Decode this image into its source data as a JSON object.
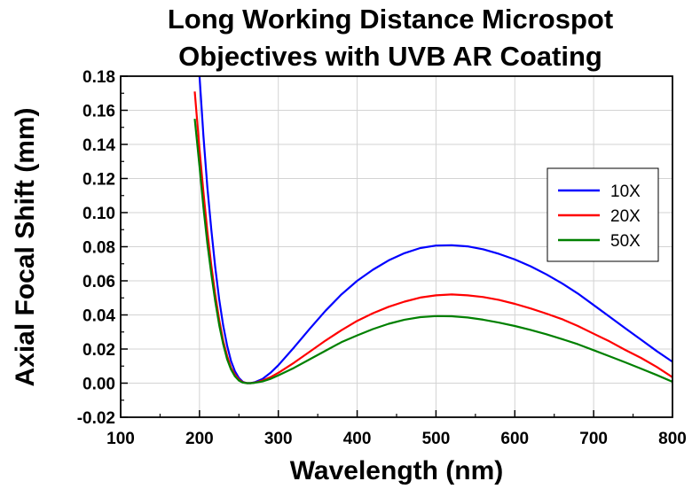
{
  "chart_data": {
    "type": "line",
    "title_lines": [
      "Long Working Distance Microspot",
      "Objectives with UVB AR Coating"
    ],
    "xlabel": "Wavelength (nm)",
    "ylabel": "Axial Focal Shift (mm)",
    "xlim": [
      100,
      800
    ],
    "ylim": [
      -0.02,
      0.18
    ],
    "xticks": [
      "100",
      "200",
      "300",
      "400",
      "500",
      "600",
      "700",
      "800"
    ],
    "yticks": [
      "-0.02",
      "0.00",
      "0.02",
      "0.04",
      "0.06",
      "0.08",
      "0.10",
      "0.12",
      "0.14",
      "0.16",
      "0.18"
    ],
    "grid": true,
    "legend_position": "right",
    "series": [
      {
        "name": "10X",
        "color": "#0000ff",
        "x": [
          195,
          200,
          205,
          210,
          215,
          220,
          225,
          230,
          235,
          240,
          245,
          250,
          255,
          260,
          265,
          270,
          280,
          290,
          300,
          320,
          340,
          360,
          380,
          400,
          420,
          440,
          460,
          480,
          500,
          520,
          540,
          560,
          580,
          600,
          620,
          640,
          660,
          680,
          700,
          720,
          740,
          760,
          780,
          800
        ],
        "y": [
          0.195,
          0.18,
          0.145,
          0.115,
          0.09,
          0.068,
          0.049,
          0.034,
          0.022,
          0.013,
          0.007,
          0.003,
          0.0008,
          0.0,
          0.0,
          0.0005,
          0.0025,
          0.006,
          0.0105,
          0.021,
          0.032,
          0.0425,
          0.052,
          0.06,
          0.0665,
          0.072,
          0.0762,
          0.0792,
          0.0807,
          0.0809,
          0.0802,
          0.0785,
          0.0758,
          0.0725,
          0.0685,
          0.0638,
          0.0585,
          0.0525,
          0.0458,
          0.039,
          0.0322,
          0.0255,
          0.0188,
          0.0125
        ]
      },
      {
        "name": "20X",
        "color": "#ff0000",
        "x": [
          194,
          200,
          205,
          210,
          215,
          220,
          225,
          230,
          235,
          240,
          245,
          250,
          255,
          260,
          265,
          270,
          280,
          290,
          300,
          320,
          340,
          360,
          380,
          400,
          420,
          440,
          460,
          480,
          500,
          520,
          540,
          560,
          580,
          600,
          620,
          640,
          660,
          680,
          700,
          720,
          740,
          760,
          780,
          800
        ],
        "y": [
          0.171,
          0.137,
          0.112,
          0.089,
          0.069,
          0.052,
          0.037,
          0.025,
          0.016,
          0.009,
          0.005,
          0.002,
          0.0005,
          0.0,
          0.0,
          0.0003,
          0.0015,
          0.0035,
          0.006,
          0.012,
          0.0185,
          0.025,
          0.031,
          0.0365,
          0.041,
          0.0448,
          0.0478,
          0.0502,
          0.0515,
          0.052,
          0.0515,
          0.0505,
          0.0488,
          0.0465,
          0.0438,
          0.0408,
          0.0375,
          0.0335,
          0.029,
          0.0245,
          0.0195,
          0.0148,
          0.0095,
          0.0035
        ]
      },
      {
        "name": "50X",
        "color": "#008000",
        "x": [
          194,
          200,
          205,
          210,
          215,
          220,
          225,
          230,
          235,
          240,
          245,
          250,
          255,
          260,
          265,
          270,
          280,
          290,
          300,
          320,
          340,
          360,
          380,
          400,
          420,
          440,
          460,
          480,
          500,
          520,
          540,
          560,
          580,
          600,
          620,
          640,
          660,
          680,
          700,
          720,
          740,
          760,
          780,
          800
        ],
        "y": [
          0.155,
          0.127,
          0.103,
          0.082,
          0.064,
          0.048,
          0.034,
          0.023,
          0.014,
          0.008,
          0.004,
          0.0015,
          0.0003,
          0.0,
          0.0,
          0.0002,
          0.001,
          0.0025,
          0.0045,
          0.009,
          0.014,
          0.019,
          0.024,
          0.028,
          0.0317,
          0.0348,
          0.0372,
          0.0387,
          0.0393,
          0.0392,
          0.0385,
          0.0372,
          0.0355,
          0.0335,
          0.0312,
          0.0287,
          0.0258,
          0.0228,
          0.0193,
          0.0158,
          0.0122,
          0.0085,
          0.0048,
          0.0008
        ]
      }
    ]
  }
}
